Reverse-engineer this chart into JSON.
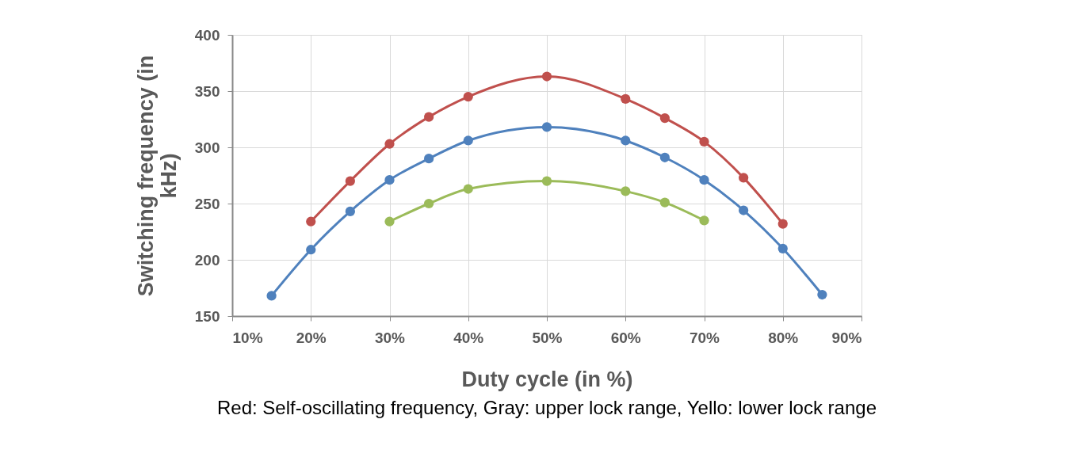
{
  "chart_data": {
    "type": "line",
    "xlabel": "Duty cycle (in %)",
    "ylabel": "Switching frequency (in kHz)",
    "series": [
      {
        "color": "#c0504d",
        "x": [
          20,
          25,
          30,
          35,
          40,
          50,
          60,
          65,
          70,
          75,
          80
        ],
        "values": [
          234,
          270,
          303,
          327,
          345,
          363,
          343,
          326,
          305,
          273,
          232
        ]
      },
      {
        "color": "#4f81bd",
        "x": [
          15,
          20,
          25,
          30,
          35,
          40,
          50,
          60,
          65,
          70,
          75,
          80,
          85
        ],
        "values": [
          168,
          209,
          243,
          271,
          290,
          306,
          318,
          306,
          291,
          271,
          244,
          210,
          169
        ]
      },
      {
        "color": "#9bbb59",
        "x": [
          30,
          35,
          40,
          50,
          60,
          65,
          70
        ],
        "values": [
          234,
          250,
          263,
          270,
          261,
          251,
          235
        ]
      }
    ],
    "xlim": [
      10,
      90
    ],
    "xticks": [
      {
        "value": 10,
        "label": "10%"
      },
      {
        "value": 20,
        "label": "20%"
      },
      {
        "value": 30,
        "label": "30%"
      },
      {
        "value": 40,
        "label": "40%"
      },
      {
        "value": 50,
        "label": "50%"
      },
      {
        "value": 60,
        "label": "60%"
      },
      {
        "value": 70,
        "label": "70%"
      },
      {
        "value": 80,
        "label": "80%"
      },
      {
        "value": 90,
        "label": "90%"
      }
    ],
    "ylim": [
      150,
      400
    ],
    "yticks": [
      150,
      200,
      250,
      300,
      350,
      400
    ],
    "grid": true,
    "marker": "circle",
    "line_style": "solid",
    "annotations": [
      "Red: Self-oscillating frequency, Gray: upper lock range, Yello: lower lock range"
    ]
  }
}
